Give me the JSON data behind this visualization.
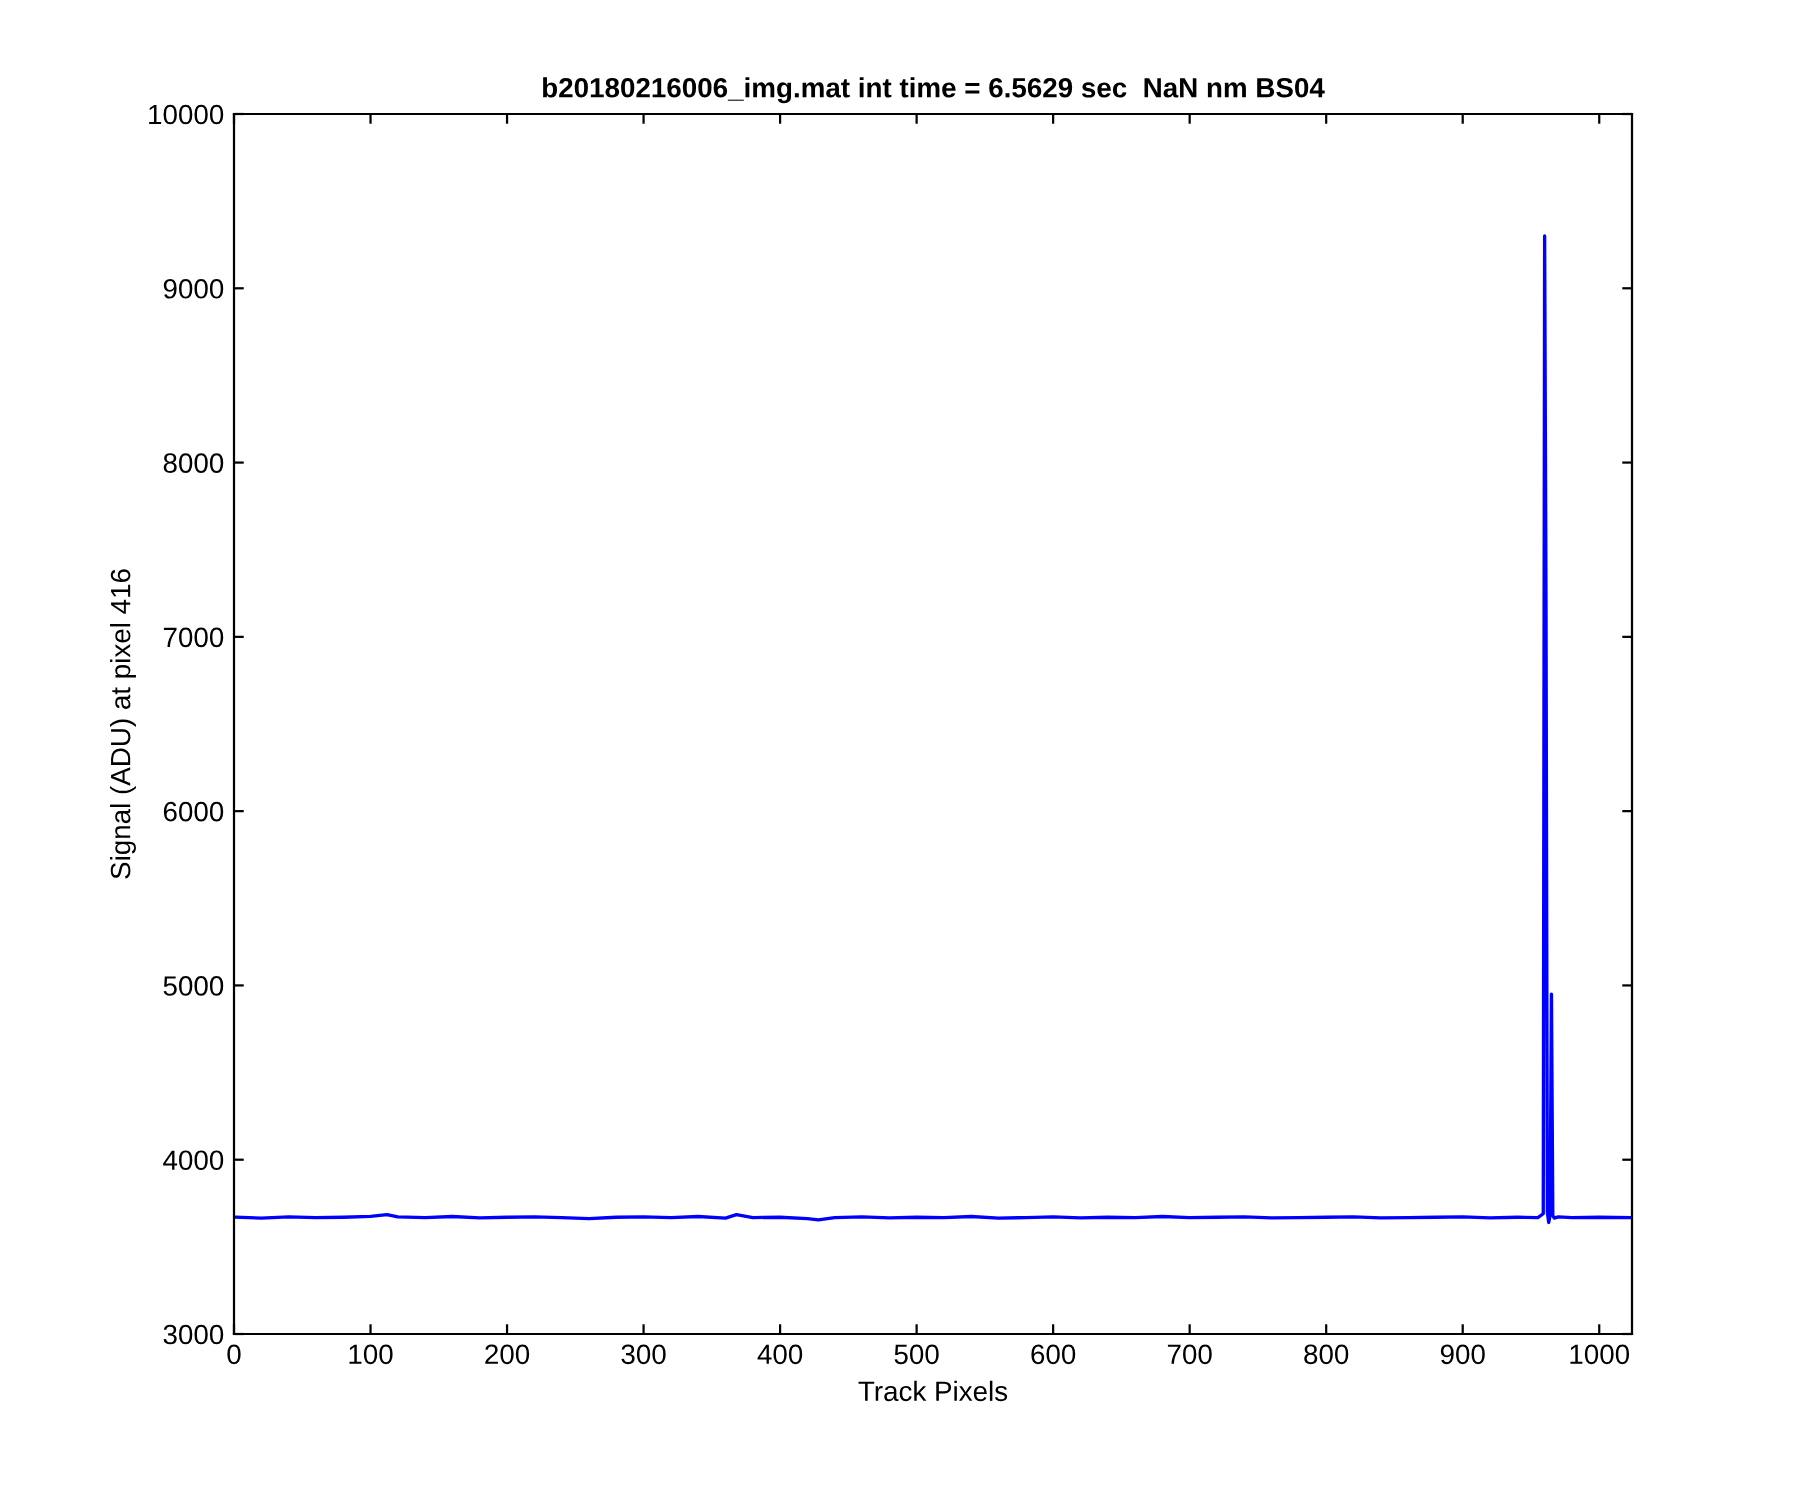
{
  "chart_data": {
    "type": "line",
    "title": "b20180216006_img.mat int time = 6.5629 sec  NaN nm BS04",
    "xlabel": "Track Pixels",
    "ylabel": "Signal (ADU) at pixel 416",
    "series": [
      {
        "color": "#0000ff",
        "x": [
          1,
          20,
          40,
          60,
          80,
          100,
          112,
          120,
          140,
          160,
          180,
          200,
          220,
          240,
          260,
          280,
          300,
          320,
          340,
          360,
          368,
          380,
          400,
          420,
          428,
          440,
          460,
          480,
          500,
          520,
          540,
          560,
          580,
          600,
          620,
          640,
          660,
          680,
          700,
          720,
          740,
          760,
          780,
          800,
          820,
          840,
          860,
          880,
          900,
          920,
          940,
          955,
          959,
          960,
          961,
          962,
          963,
          964,
          965,
          966,
          967,
          970,
          980,
          1000,
          1024
        ],
        "values": [
          3670,
          3665,
          3672,
          3668,
          3670,
          3675,
          3685,
          3672,
          3668,
          3674,
          3666,
          3670,
          3672,
          3668,
          3662,
          3670,
          3672,
          3668,
          3674,
          3665,
          3685,
          3668,
          3670,
          3662,
          3655,
          3668,
          3672,
          3666,
          3670,
          3668,
          3674,
          3665,
          3668,
          3672,
          3666,
          3670,
          3668,
          3674,
          3668,
          3670,
          3672,
          3666,
          3668,
          3670,
          3672,
          3666,
          3668,
          3670,
          3672,
          3666,
          3670,
          3668,
          3690,
          9300,
          7200,
          3700,
          3640,
          3680,
          4950,
          3680,
          3665,
          3672,
          3668,
          3670,
          3668
        ]
      }
    ],
    "xlim": [
      0,
      1024
    ],
    "ylim": [
      3000,
      10000
    ],
    "xticks": [
      0,
      100,
      200,
      300,
      400,
      500,
      600,
      700,
      800,
      900,
      1000
    ],
    "yticks": [
      3000,
      4000,
      5000,
      6000,
      7000,
      8000,
      9000,
      10000
    ],
    "grid": false,
    "legend": false
  }
}
